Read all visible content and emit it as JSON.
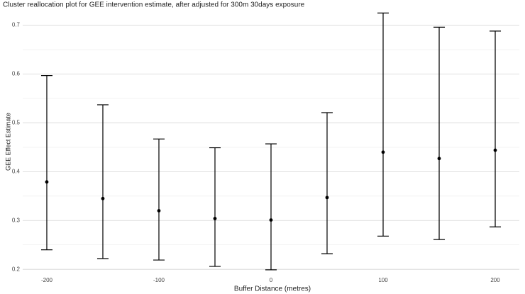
{
  "chart_data": {
    "type": "errorbar",
    "title": "Cluster reallocation plot for GEE intervention estimate, after adjusted for 300m 30days exposure",
    "x_label": "Buffer Distance (metres)",
    "y_label": "GEE Effect Estimate",
    "x": [
      -200,
      -150,
      -100,
      -50,
      0,
      50,
      100,
      150,
      200
    ],
    "values": [
      0.379,
      0.345,
      0.32,
      0.304,
      0.301,
      0.347,
      0.44,
      0.427,
      0.444
    ],
    "lower": [
      0.24,
      0.222,
      0.219,
      0.206,
      0.199,
      0.232,
      0.268,
      0.261,
      0.287
    ],
    "upper": [
      0.597,
      0.537,
      0.467,
      0.449,
      0.457,
      0.521,
      0.725,
      0.696,
      0.688
    ],
    "color": "#000000",
    "xlim": [
      -221.5,
      221.5
    ],
    "xticks": [
      -200,
      -100,
      0,
      100,
      200
    ],
    "ylim": [
      0.193,
      0.727
    ],
    "yticks": [
      0.2,
      0.3,
      0.4,
      0.5,
      0.6,
      0.7
    ],
    "grid": true
  }
}
